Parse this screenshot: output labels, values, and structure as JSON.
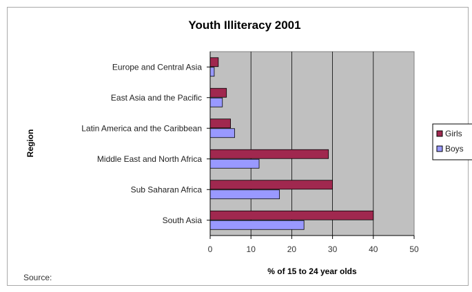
{
  "chart_data": {
    "type": "bar",
    "orientation": "horizontal",
    "title": "Youth Illiteracy 2001",
    "xlabel": "% of 15 to 24 year olds",
    "ylabel": "Region",
    "categories": [
      "Europe and Central Asia",
      "East Asia and the Pacific",
      "Latin America and the Caribbean",
      "Middle East and North Africa",
      "Sub Saharan Africa",
      "South Asia"
    ],
    "series": [
      {
        "name": "Girls",
        "color": "#a0284f",
        "values": [
          2,
          4,
          5,
          29,
          30,
          40
        ]
      },
      {
        "name": "Boys",
        "color": "#9999ff",
        "values": [
          1,
          3,
          6,
          12,
          17,
          23
        ]
      }
    ],
    "xlim": [
      0,
      50
    ],
    "xticks": [
      "0",
      "10",
      "20",
      "30",
      "40",
      "50"
    ],
    "grid": true,
    "plot_background": "#c0c0c0",
    "legend_position": "right",
    "source_label": "Source:"
  }
}
